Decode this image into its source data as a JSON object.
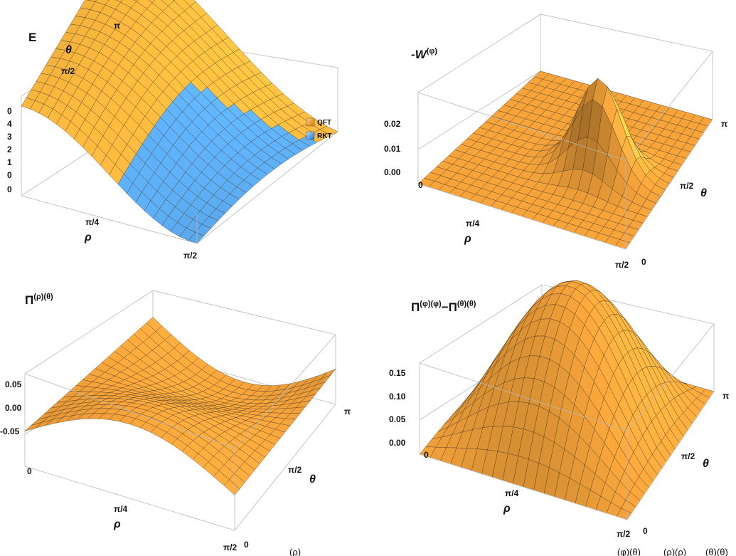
{
  "chart_data": [
    {
      "type": "surface",
      "title": "E",
      "xlabel": "ρ",
      "ylabel": "θ",
      "x_ticks": [
        "0",
        "π/4",
        "π/2"
      ],
      "y_ticks": [
        "π/2",
        "π"
      ],
      "y_ticks_far": [
        "0"
      ],
      "z_ticks": [
        "4",
        "3",
        "2",
        "1",
        "0",
        "0"
      ],
      "zlim": [
        0,
        4
      ],
      "legend": [
        {
          "label": "QFT",
          "color": "#f5a623"
        },
        {
          "label": "RKT",
          "color": "#4a90e2"
        }
      ],
      "colors": {
        "qft": "#f2a93a",
        "rkt": "#4f9fe8"
      }
    },
    {
      "type": "surface",
      "title": "-W(φ)",
      "title_main": "-W",
      "title_sup": "(φ)",
      "xlabel": "ρ",
      "ylabel": "θ",
      "x_ticks": [
        "0",
        "π/4",
        "π/2"
      ],
      "y_ticks": [
        "0",
        "π/2",
        "π"
      ],
      "z_ticks": [
        "0.02",
        "0.01",
        "0.00"
      ],
      "zlim": [
        0,
        0.025
      ],
      "colors": {
        "surface": "#f2a93a"
      }
    },
    {
      "type": "surface",
      "title": "Π(ρ)(θ)",
      "title_main": "Π",
      "title_sup": "(ρ)(θ)",
      "xlabel": "ρ",
      "ylabel": "θ",
      "x_ticks": [
        "0",
        "π/4",
        "π/2"
      ],
      "y_ticks": [
        "0",
        "π/2",
        "π"
      ],
      "z_ticks": [
        "0.05",
        "0.00",
        "-0.05"
      ],
      "zlim": [
        -0.06,
        0.06
      ],
      "colors": {
        "surface": "#f2a93a"
      }
    },
    {
      "type": "surface",
      "title": "Π(φ)(φ)−Π(θ)(θ)",
      "title_parts": [
        "Π",
        "(φ)(φ)",
        "−Π",
        "(θ)(θ)"
      ],
      "xlabel": "ρ",
      "ylabel": "θ",
      "x_ticks": [
        "0",
        "π/4",
        "π/2"
      ],
      "y_ticks": [
        "0",
        "π/2",
        "π"
      ],
      "z_ticks": [
        "0.15",
        "0.10",
        "0.05",
        "0.00"
      ],
      "zlim": [
        0,
        0.17
      ],
      "colors": {
        "surface": "#f2a93a"
      }
    }
  ],
  "caption_fragments": [
    "(ρ)",
    "(φ)(θ)",
    "(ρ)(ρ)",
    "(θ)(θ)"
  ]
}
